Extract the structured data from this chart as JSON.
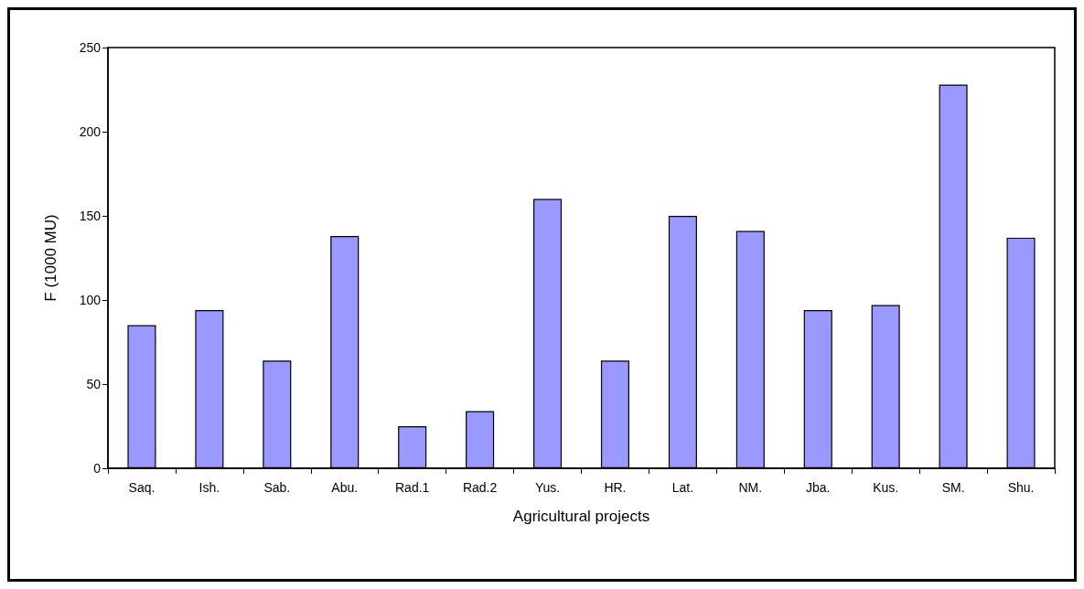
{
  "chart_data": {
    "type": "bar",
    "xlabel": "Agricultural projects",
    "ylabel": "F (1000 MU)",
    "categories": [
      "Saq.",
      "Ish.",
      "Sab.",
      "Abu.",
      "Rad.1",
      "Rad.2",
      "Yus.",
      "HR.",
      "Lat.",
      "NM.",
      "Jba.",
      "Kus.",
      "SM.",
      "Shu."
    ],
    "values": [
      85,
      94,
      64,
      138,
      25,
      34,
      160,
      64,
      150,
      141,
      94,
      97,
      228,
      137
    ],
    "color": "#9999ff",
    "ylim": [
      0,
      250
    ],
    "yticks": [
      0,
      50,
      100,
      150,
      200,
      250
    ],
    "grid": false
  }
}
